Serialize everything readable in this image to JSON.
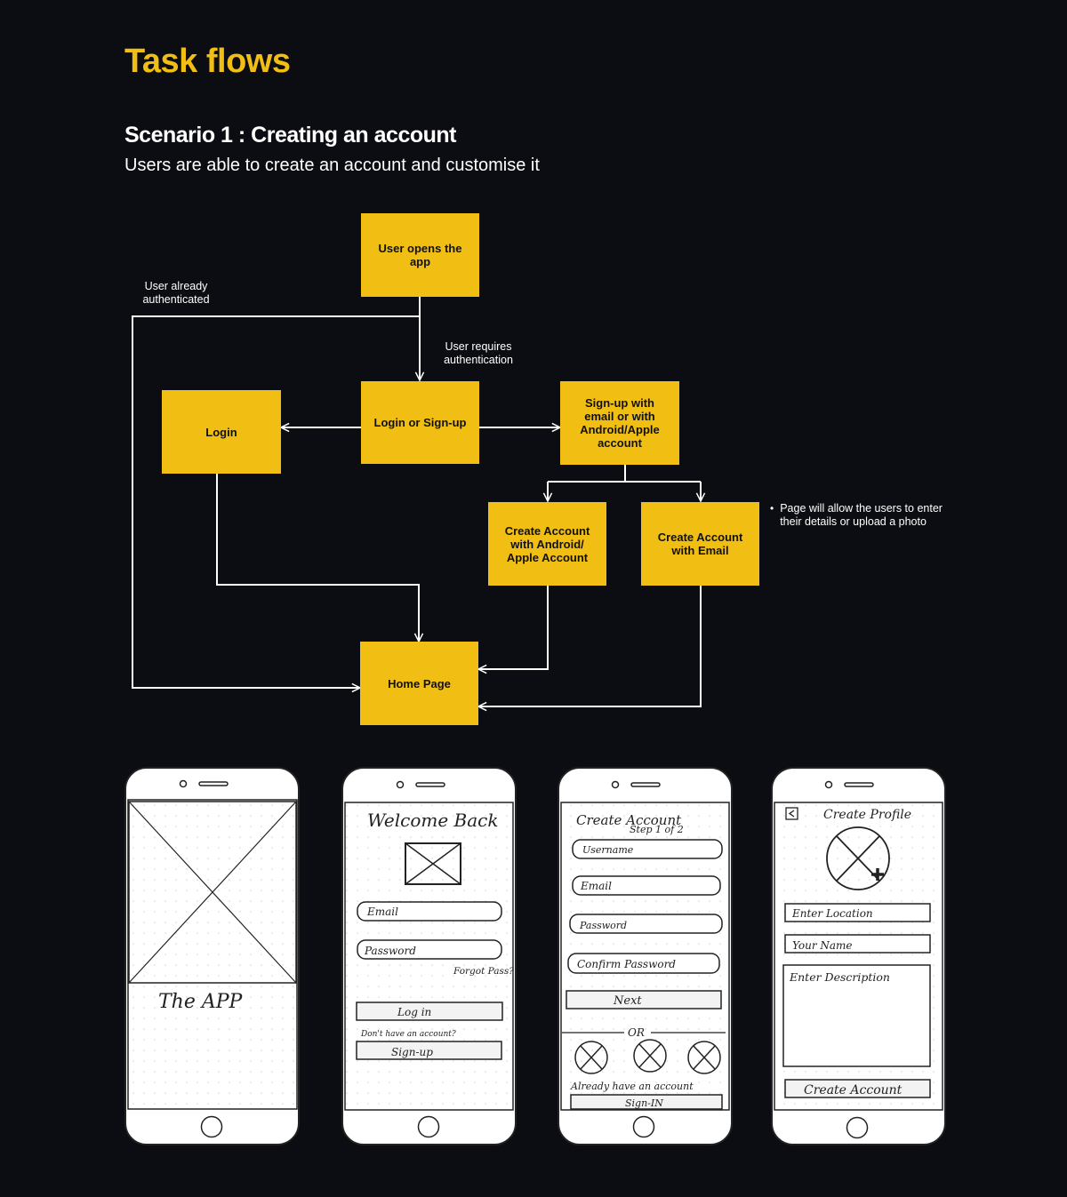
{
  "header": {
    "title": "Task flows",
    "scenario": "Scenario 1 : Creating an account",
    "description": "Users are able to create an account and customise it"
  },
  "flow": {
    "nodes": {
      "open_app": "User opens the app",
      "login_signup": "Login or Sign-up",
      "login": "Login",
      "signup_options": "Sign-up with email or with Android/Apple account",
      "create_android": "Create Account with Android/ Apple Account",
      "create_email": "Create Account with Email",
      "home": "Home Page"
    },
    "edge_labels": {
      "already_auth": "User already authenticated",
      "requires_auth": "User requires authentication"
    },
    "note": "Page will allow the users to enter their details or upload a photo",
    "colors": {
      "box": "#f1be13",
      "line": "#ffffff",
      "background": "#0c0d12"
    }
  },
  "wireframes": {
    "splash": {
      "text": "The APP"
    },
    "login": {
      "title": "Welcome Back",
      "email": "Email",
      "password": "Password",
      "forgot": "Forgot Pass?",
      "login_btn": "Log in",
      "no_account": "Don't have an account?",
      "signup_btn": "Sign-up"
    },
    "create": {
      "title": "Create Account",
      "step": "Step 1 of 2",
      "username": "Username",
      "email": "Email",
      "password": "Password",
      "confirm": "Confirm Password",
      "next": "Next",
      "or": "OR",
      "already": "Already have an account",
      "signin": "Sign-IN"
    },
    "profile": {
      "title": "Create Profile",
      "location": "Enter Location",
      "name": "Your Name",
      "description": "Enter Description",
      "create_btn": "Create Account"
    }
  }
}
